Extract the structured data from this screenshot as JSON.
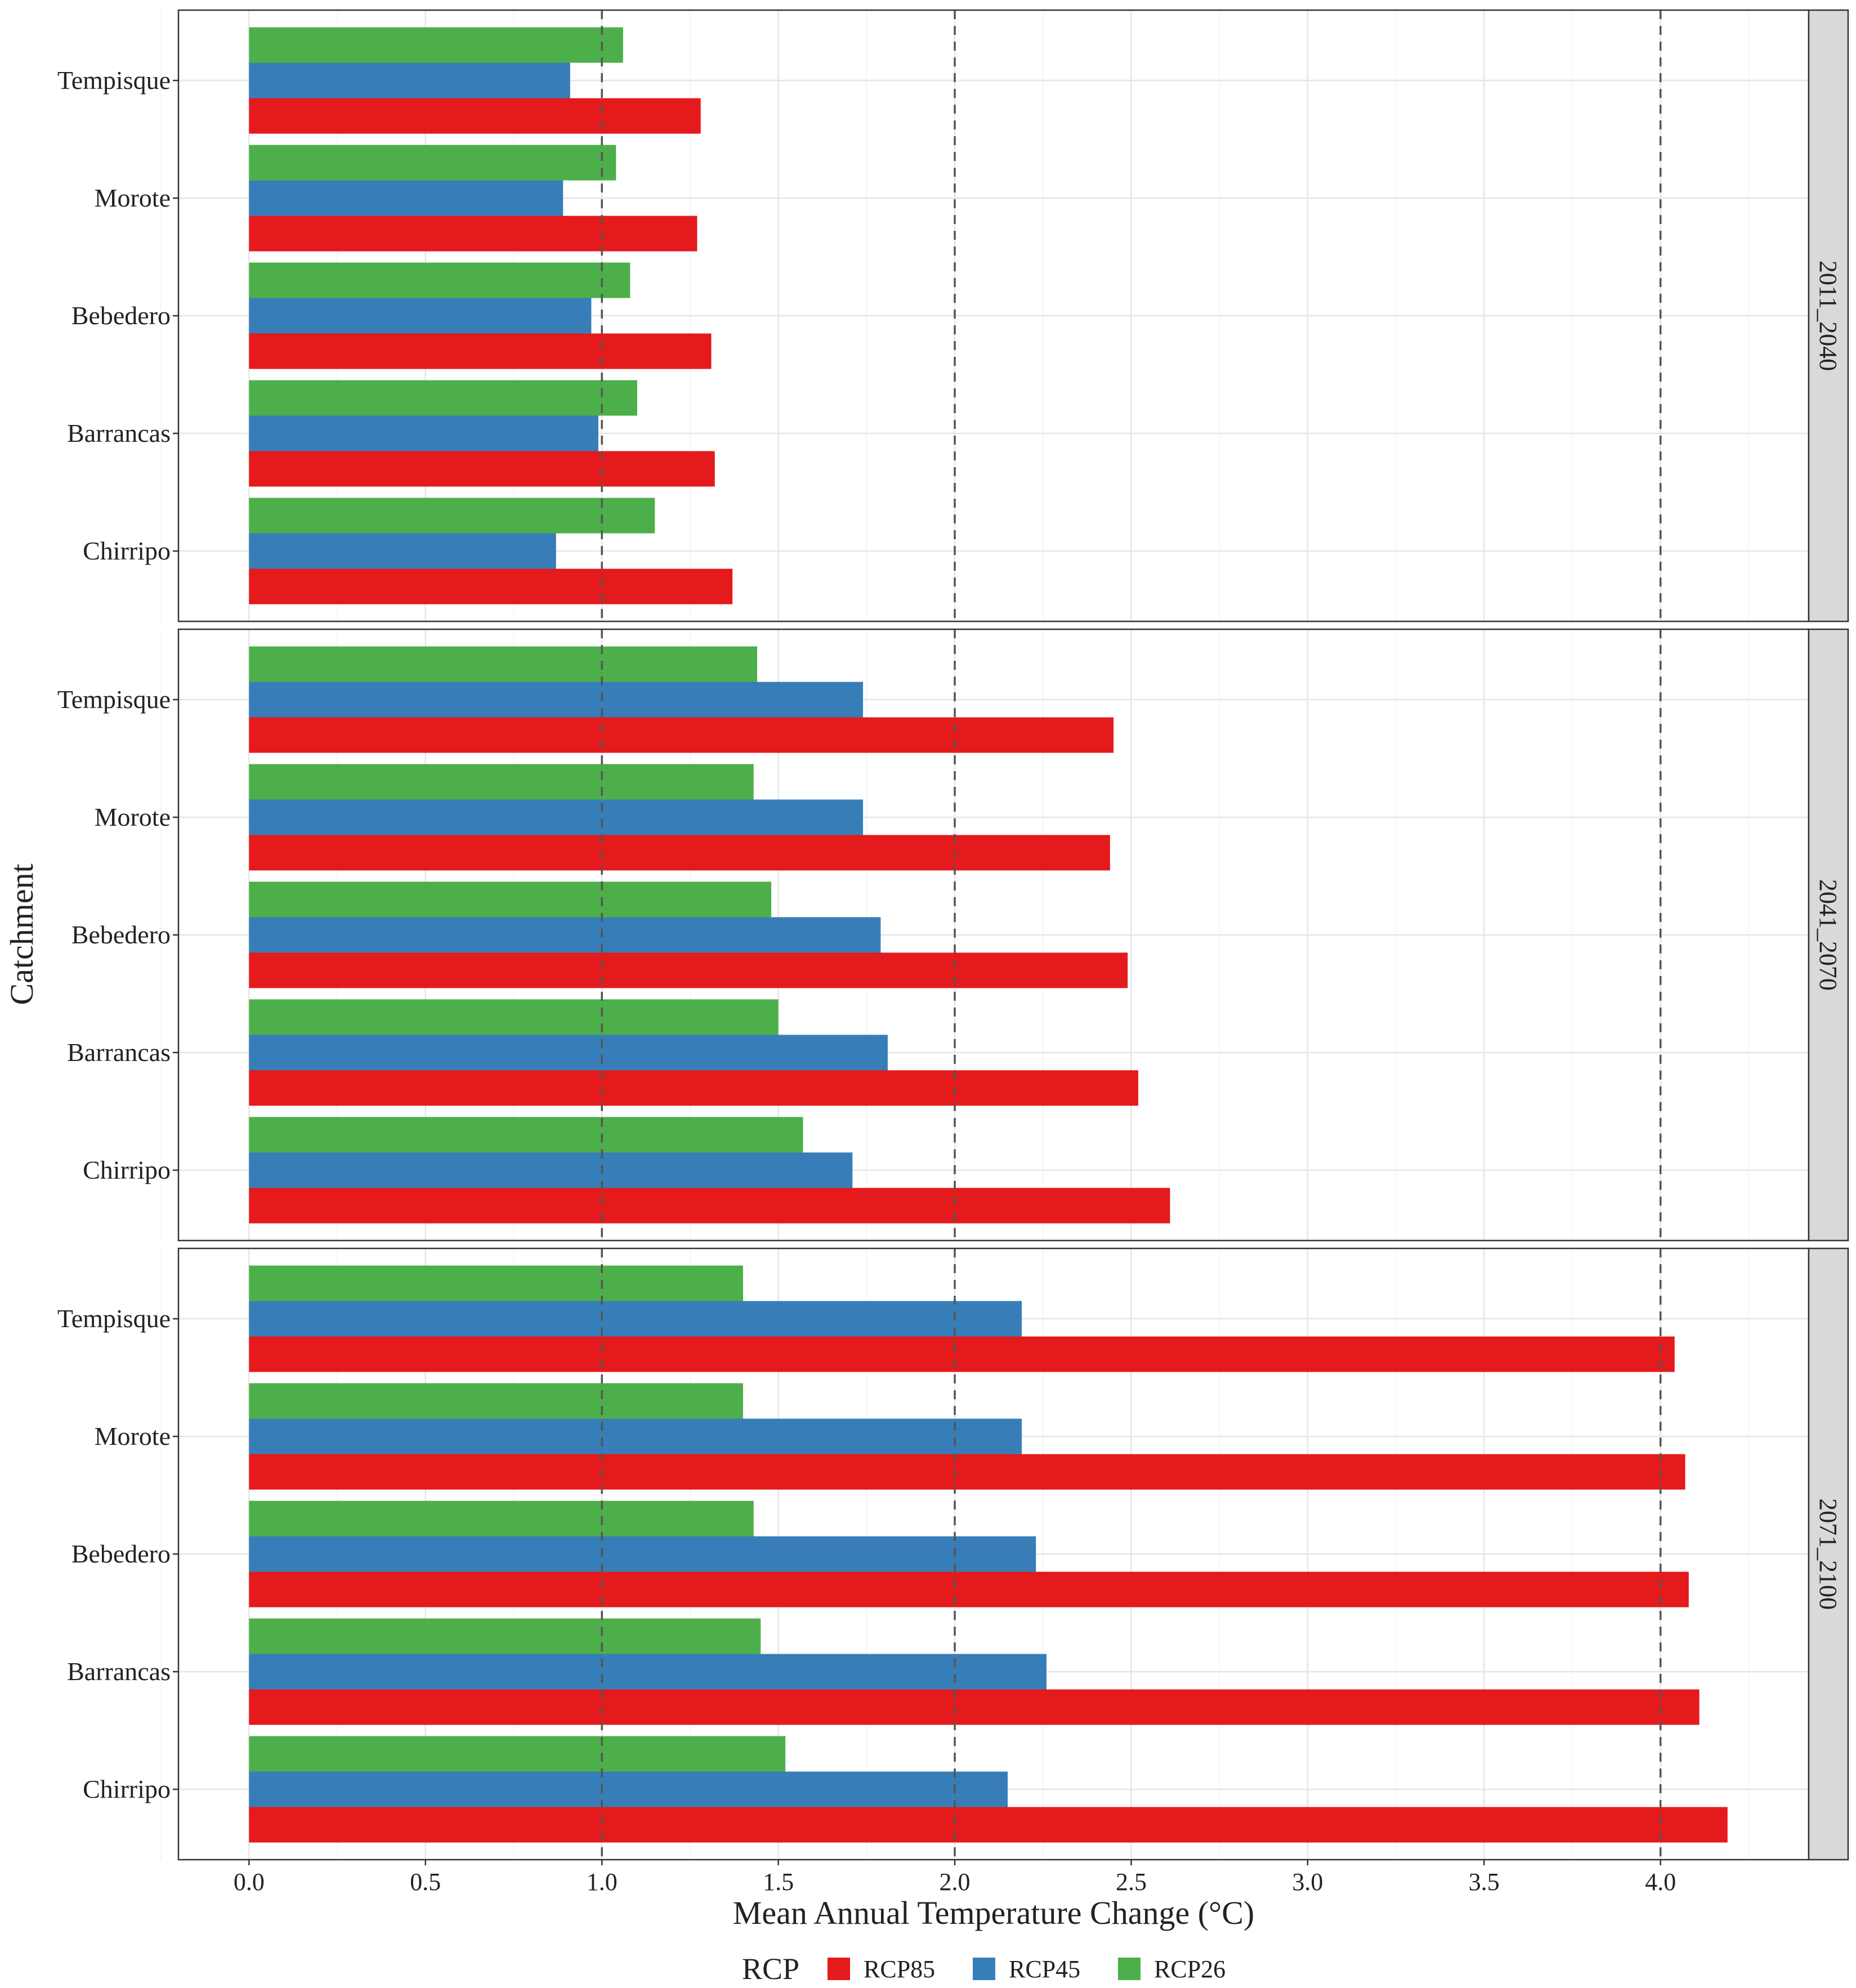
{
  "chart_data": {
    "type": "bar",
    "orientation": "horizontal",
    "xlabel": "Mean Annual Temperature Change (°C)",
    "ylabel": "Catchment",
    "xlim": [
      -0.2,
      4.42
    ],
    "xticks": [
      0.0,
      0.5,
      1.0,
      1.5,
      2.0,
      2.5,
      3.0,
      3.5,
      4.0
    ],
    "xtick_labels": [
      "0.0",
      "0.5",
      "1.0",
      "1.5",
      "2.0",
      "2.5",
      "3.0",
      "3.5",
      "4.0"
    ],
    "reference_lines": [
      1.0,
      2.0,
      4.0
    ],
    "categories": [
      "Tempisque",
      "Morote",
      "Bebedero",
      "Barrancas",
      "Chirripo"
    ],
    "legend": {
      "title": "RCP",
      "position": "bottom",
      "items": [
        {
          "name": "RCP85",
          "color": "#E41A1C"
        },
        {
          "name": "RCP45",
          "color": "#377EB8"
        },
        {
          "name": "RCP26",
          "color": "#4DAF4A"
        }
      ]
    },
    "panels": [
      {
        "label": "2011_2040",
        "series": [
          {
            "name": "RCP26",
            "values": [
              1.06,
              1.04,
              1.08,
              1.1,
              1.15
            ]
          },
          {
            "name": "RCP45",
            "values": [
              0.91,
              0.89,
              0.97,
              0.99,
              0.87
            ]
          },
          {
            "name": "RCP85",
            "values": [
              1.28,
              1.27,
              1.31,
              1.32,
              1.37
            ]
          }
        ]
      },
      {
        "label": "2041_2070",
        "series": [
          {
            "name": "RCP26",
            "values": [
              1.44,
              1.43,
              1.48,
              1.5,
              1.57
            ]
          },
          {
            "name": "RCP45",
            "values": [
              1.74,
              1.74,
              1.79,
              1.81,
              1.71
            ]
          },
          {
            "name": "RCP85",
            "values": [
              2.45,
              2.44,
              2.49,
              2.52,
              2.61
            ]
          }
        ]
      },
      {
        "label": "2071_2100",
        "series": [
          {
            "name": "RCP26",
            "values": [
              1.4,
              1.4,
              1.43,
              1.45,
              1.52
            ]
          },
          {
            "name": "RCP45",
            "values": [
              2.19,
              2.19,
              2.23,
              2.26,
              2.15
            ]
          },
          {
            "name": "RCP85",
            "values": [
              4.04,
              4.07,
              4.08,
              4.11,
              4.19
            ]
          }
        ]
      }
    ]
  }
}
